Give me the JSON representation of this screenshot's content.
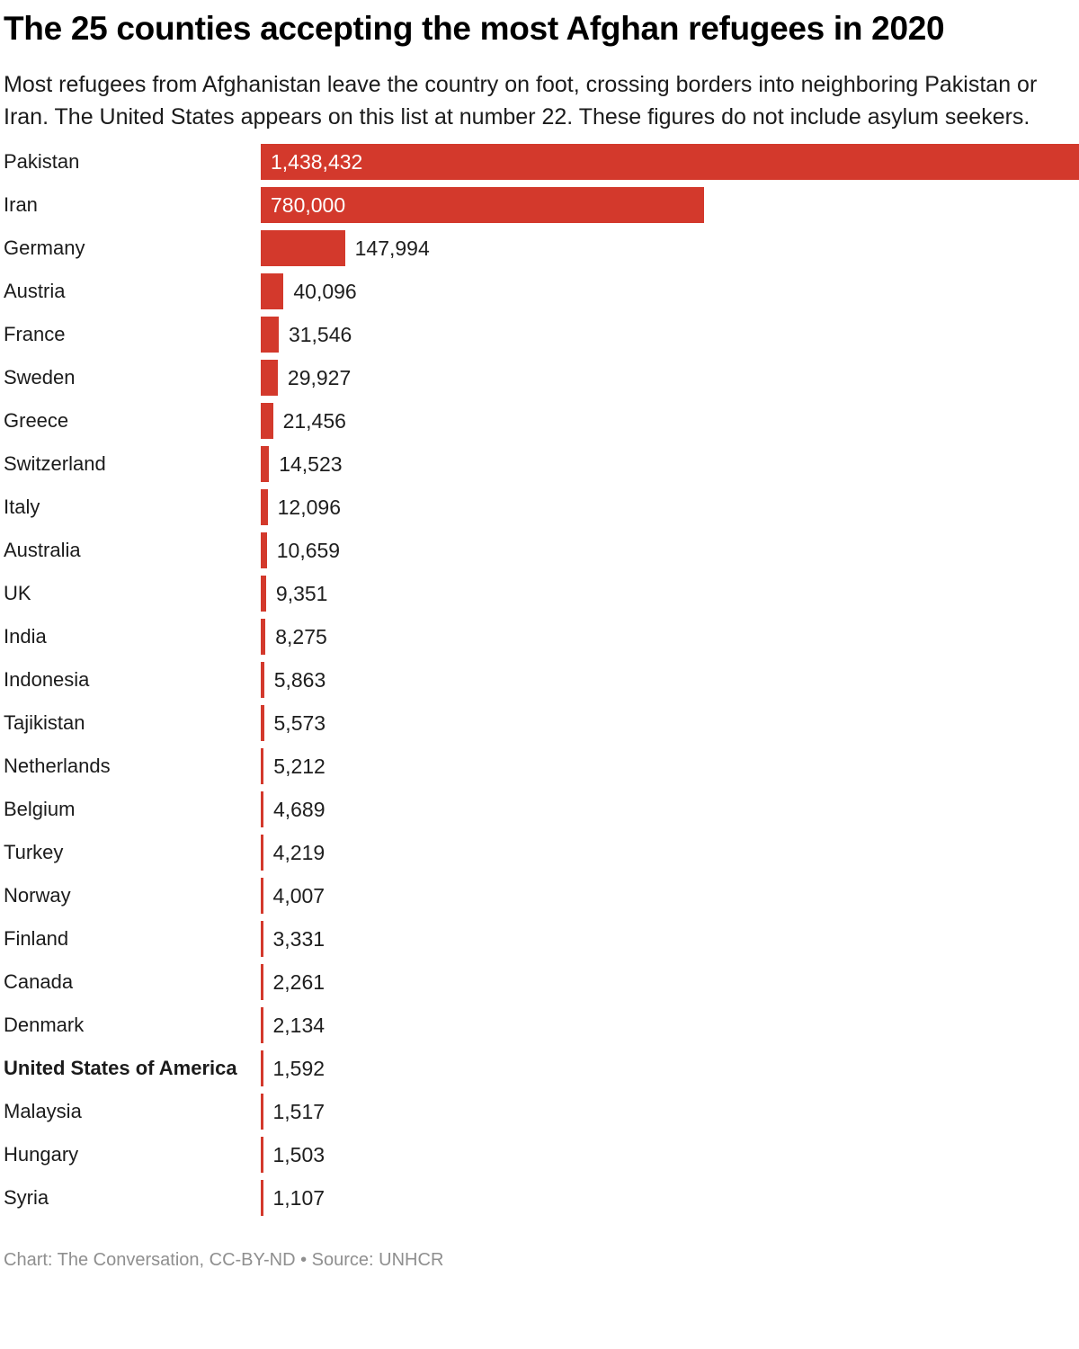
{
  "header": {
    "title": "The 25 counties accepting the most Afghan refugees in 2020",
    "subtitle": "Most refugees from Afghanistan leave the country on foot, crossing borders into neighboring Pakistan or Iran. The United States appears on this list at number 22. These figures do not include asylum seekers."
  },
  "chart_data": {
    "type": "bar",
    "orientation": "horizontal",
    "title": "The 25 counties accepting the most Afghan refugees in 2020",
    "categories": [
      "Pakistan",
      "Iran",
      "Germany",
      "Austria",
      "France",
      "Sweden",
      "Greece",
      "Switzerland",
      "Italy",
      "Australia",
      "UK",
      "India",
      "Indonesia",
      "Tajikistan",
      "Netherlands",
      "Belgium",
      "Turkey",
      "Norway",
      "Finland",
      "Canada",
      "Denmark",
      "United States of America",
      "Malaysia",
      "Hungary",
      "Syria"
    ],
    "values": [
      1438432,
      780000,
      147994,
      40096,
      31546,
      29927,
      21456,
      14523,
      12096,
      10659,
      9351,
      8275,
      5863,
      5573,
      5212,
      4689,
      4219,
      4007,
      3331,
      2261,
      2134,
      1592,
      1517,
      1503,
      1107
    ],
    "value_labels": [
      "1,438,432",
      "780,000",
      "147,994",
      "40,096",
      "31,546",
      "29,927",
      "21,456",
      "14,523",
      "12,096",
      "10,659",
      "9,351",
      "8,275",
      "5,863",
      "5,573",
      "5,212",
      "4,689",
      "4,219",
      "4,007",
      "3,331",
      "2,261",
      "2,134",
      "1,592",
      "1,517",
      "1,503",
      "1,107"
    ],
    "xlim": [
      0,
      1438432
    ],
    "xlabel": "",
    "ylabel": "",
    "grid": false,
    "legend": false,
    "bar_color": "#d3392c",
    "bold_categories": [
      "United States of America"
    ]
  },
  "footer": {
    "text": "Chart: The Conversation, CC-BY-ND • Source: UNHCR"
  }
}
